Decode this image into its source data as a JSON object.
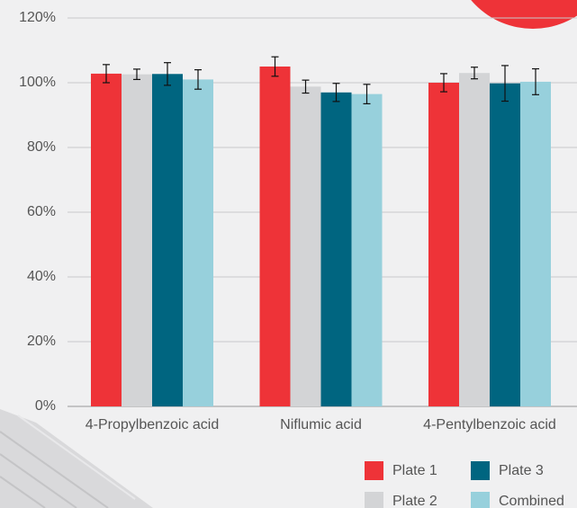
{
  "chart_data": {
    "type": "bar",
    "categories": [
      "4-Propylbenzoic acid",
      "Niflumic acid",
      "4-Pentylbenzoic acid"
    ],
    "series": [
      {
        "name": "Plate 1",
        "color": "#ee3338",
        "values": [
          102.8,
          105,
          100
        ],
        "errors": [
          2.8,
          3,
          2.8
        ]
      },
      {
        "name": "Plate 2",
        "color": "#d3d4d6",
        "values": [
          102.6,
          98.8,
          103
        ],
        "errors": [
          1.6,
          2,
          1.8
        ]
      },
      {
        "name": "Plate 3",
        "color": "#006580",
        "values": [
          102.7,
          97,
          99.8
        ],
        "errors": [
          3.5,
          2.8,
          5.5
        ]
      },
      {
        "name": "Combined",
        "color": "#97d0dc",
        "values": [
          101,
          96.5,
          100.3
        ],
        "errors": [
          3,
          3,
          4
        ]
      }
    ],
    "ylim": [
      0,
      120
    ],
    "yticks": [
      {
        "value": 0,
        "label": "0%"
      },
      {
        "value": 20,
        "label": "20%"
      },
      {
        "value": 40,
        "label": "40%"
      },
      {
        "value": 60,
        "label": "60%"
      },
      {
        "value": 80,
        "label": "80%"
      },
      {
        "value": 100,
        "label": "100%"
      },
      {
        "value": 120,
        "label": "120%"
      }
    ],
    "grid": true
  }
}
